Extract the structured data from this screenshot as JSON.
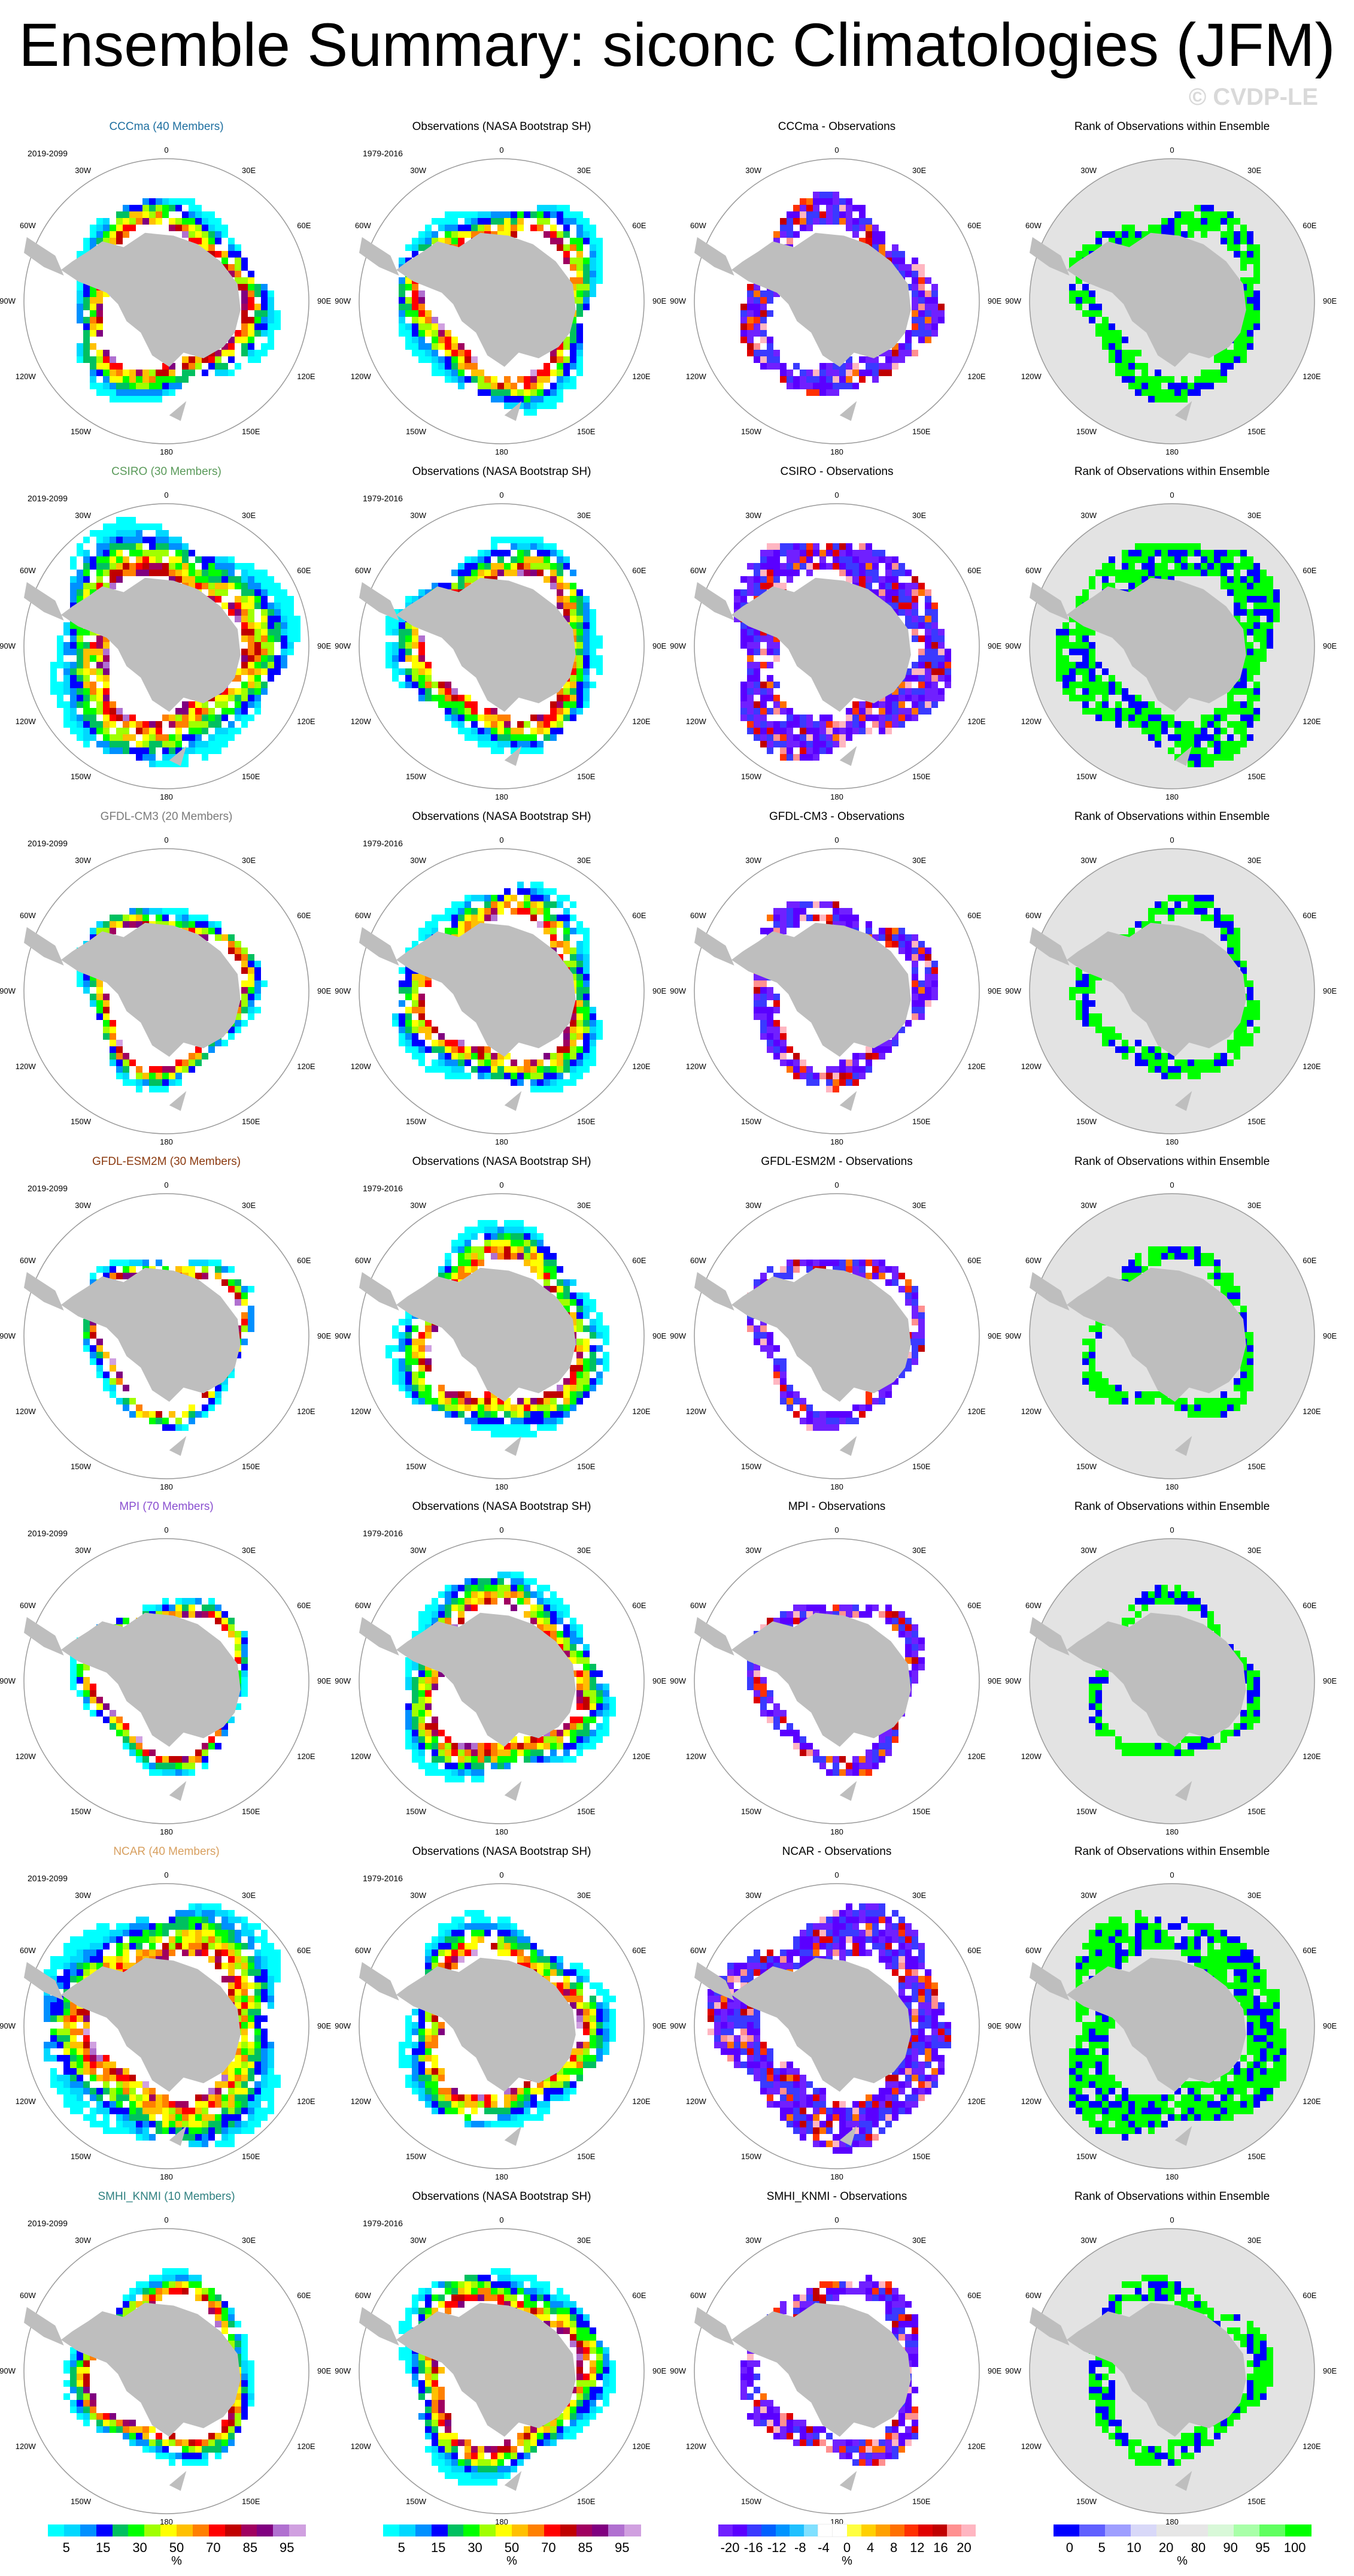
{
  "title": "Ensemble Summary: siconc Climatologies (JFM)",
  "watermark": "© CVDP-LE",
  "colors": {
    "land": "#bebebe",
    "ocean_rank": "#e3e3e3",
    "border": "#9a9a9a",
    "conc": [
      "#00ffff",
      "#00d8ff",
      "#0090ff",
      "#0000ff",
      "#00c060",
      "#00ff00",
      "#a0ff00",
      "#ffff00",
      "#ffc000",
      "#ff8000",
      "#ff0000",
      "#c00000",
      "#a00060",
      "#800080",
      "#b070d0",
      "#d0a0e0"
    ],
    "diff": [
      "#7020ff",
      "#5a00ff",
      "#3a3aff",
      "#0060ff",
      "#0094ff",
      "#20c0ff",
      "#80e0ff",
      "#ffffff",
      "#ffffff",
      "#ffff40",
      "#ffd000",
      "#ffa000",
      "#ff7000",
      "#ff3000",
      "#e00000",
      "#c00000",
      "#ff9090",
      "#ffb6c1"
    ],
    "rank": [
      "#0000ff",
      "#6060ff",
      "#9e9eff",
      "#d8d8f8",
      "#e6e6e6",
      "#e6e6e6",
      "#d8f8d8",
      "#a8ffa8",
      "#60ff60",
      "#00ff00"
    ]
  },
  "map_labels": {
    "lon": [
      "0",
      "30E",
      "60E",
      "90E",
      "120E",
      "150E",
      "180",
      "150W",
      "120W",
      "90W",
      "60W",
      "30W"
    ]
  },
  "rows": [
    {
      "model": "CCCma (40 Members)",
      "color": "#1e6fa0",
      "years": "2019-2099",
      "diff_title": "CCCma - Observations"
    },
    {
      "model": "CSIRO (30 Members)",
      "color": "#5a9a5a",
      "years": "2019-2099",
      "diff_title": "CSIRO - Observations"
    },
    {
      "model": "GFDL-CM3 (20 Members)",
      "color": "#7a7a7a",
      "years": "2019-2099",
      "diff_title": "GFDL-CM3 - Observations"
    },
    {
      "model": "GFDL-ESM2M (30 Members)",
      "color": "#8b3a10",
      "years": "2019-2099",
      "diff_title": "GFDL-ESM2M - Observations"
    },
    {
      "model": "MPI (70 Members)",
      "color": "#8a50d0",
      "years": "2019-2099",
      "diff_title": "MPI - Observations"
    },
    {
      "model": "NCAR (40 Members)",
      "color": "#d8a060",
      "years": "2019-2099",
      "diff_title": "NCAR - Observations"
    },
    {
      "model": "SMHI_KNMI (10 Members)",
      "color": "#2f8080",
      "years": "2019-2099",
      "diff_title": "SMHI_KNMI - Observations"
    }
  ],
  "obs_title": "Observations (NASA Bootstrap SH)",
  "obs_years": "1979-2016",
  "rank_title": "Rank of Observations within Ensemble",
  "colorbars": [
    {
      "type": "conc",
      "ticks": [
        "5",
        "15",
        "30",
        "50",
        "70",
        "85",
        "95"
      ],
      "unit": "%"
    },
    {
      "type": "conc",
      "ticks": [
        "5",
        "15",
        "30",
        "50",
        "70",
        "85",
        "95"
      ],
      "unit": "%"
    },
    {
      "type": "diff",
      "ticks": [
        "-20",
        "-16",
        "-12",
        "-8",
        "-4",
        "0",
        "4",
        "8",
        "12",
        "16",
        "20"
      ],
      "unit": "%"
    },
    {
      "type": "rank",
      "ticks": [
        "0",
        "5",
        "10",
        "20",
        "80",
        "90",
        "95",
        "100"
      ],
      "unit": "%"
    }
  ],
  "chart_data": [
    {
      "type": "heatmap",
      "description_panels": "7 rows x 4 columns of south-polar stereographic maps",
      "columns": [
        "Model ensemble mean",
        "Observations (NASA Bootstrap SH)",
        "Model - Observations",
        "Rank of Observations within Ensemble"
      ]
    }
  ]
}
